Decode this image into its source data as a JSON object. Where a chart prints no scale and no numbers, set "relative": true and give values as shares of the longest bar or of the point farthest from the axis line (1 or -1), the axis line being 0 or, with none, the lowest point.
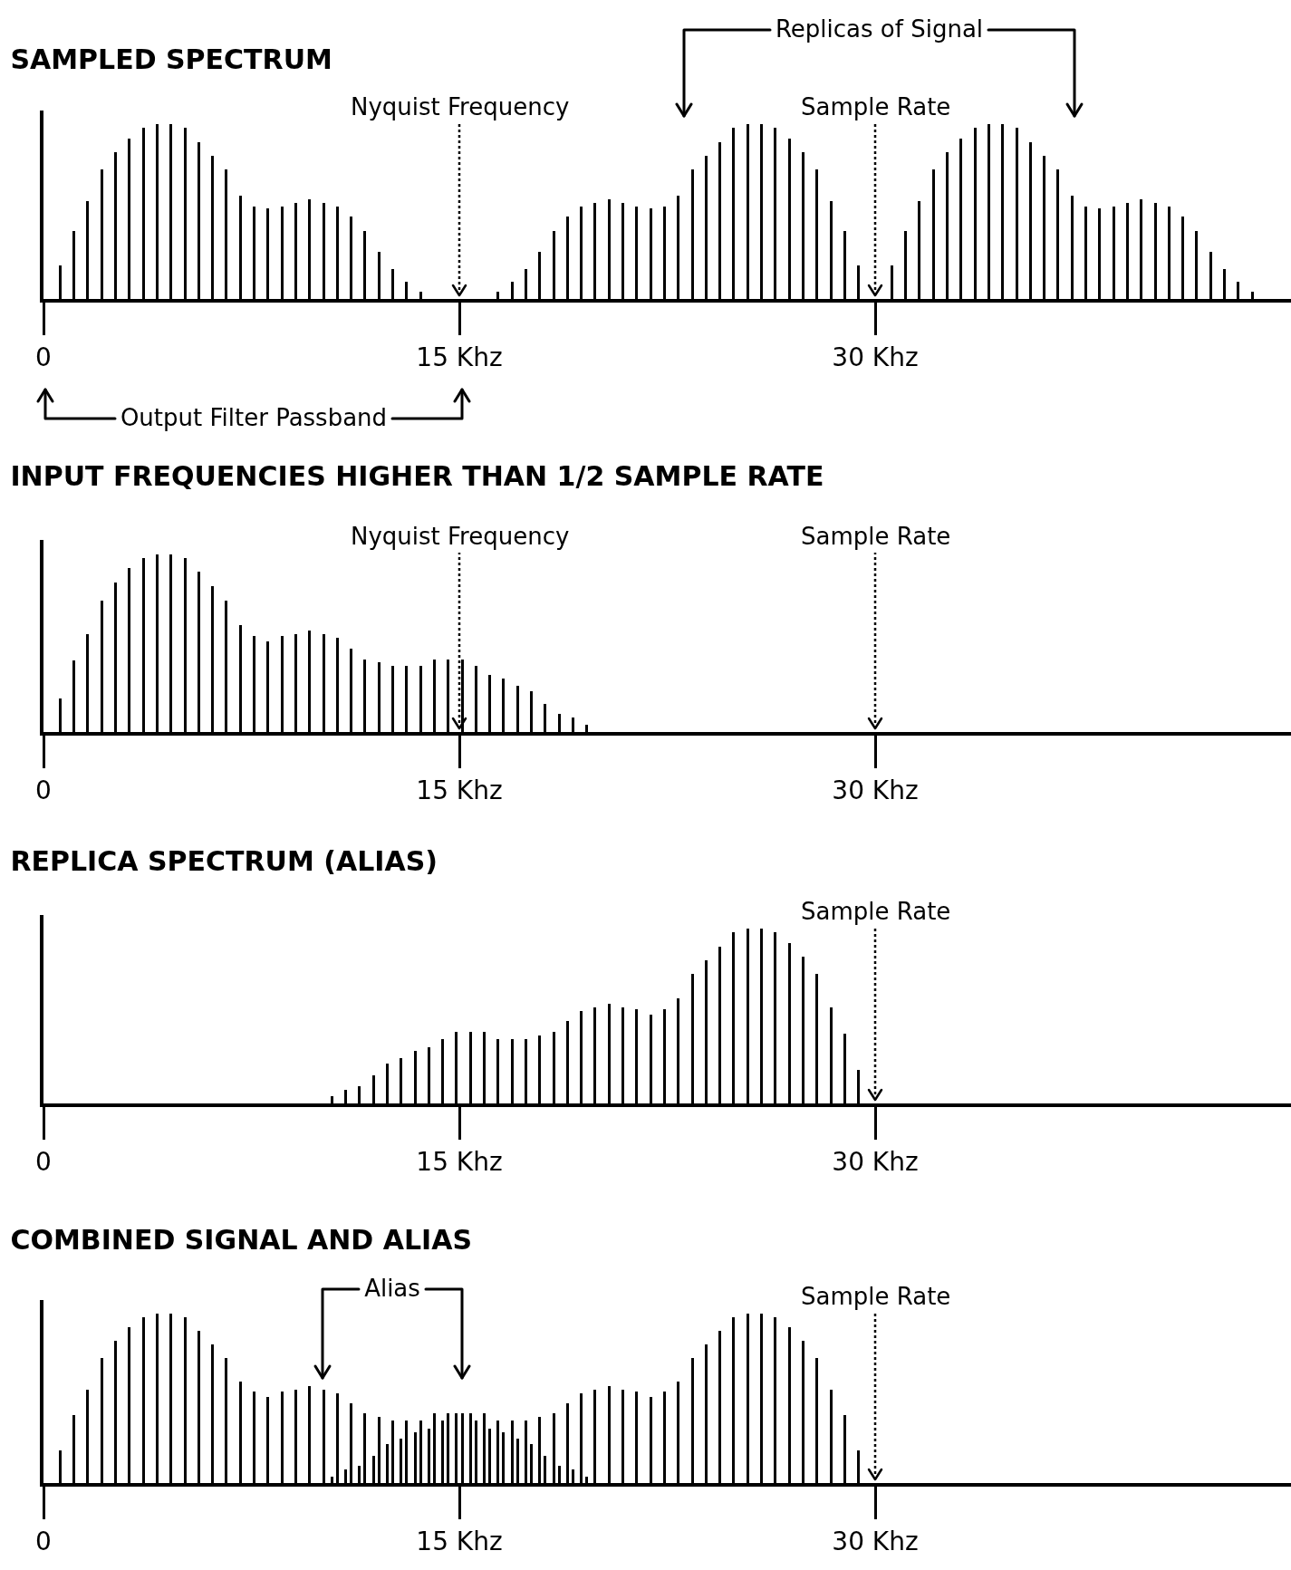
{
  "chart_data": [
    {
      "type": "bar",
      "title": "SAMPLED SPECTRUM",
      "relative": true,
      "xlim": [
        0,
        45
      ],
      "xticks": [
        {
          "value": 0,
          "label": "0"
        },
        {
          "value": 15,
          "label": "15 Khz"
        },
        {
          "value": 30,
          "label": "30 Khz"
        }
      ],
      "series": [
        {
          "color": "#000000",
          "x": [
            0.6,
            1.1,
            1.6,
            2.1,
            2.6,
            3.1,
            3.6,
            4.1,
            4.6,
            5.1,
            5.6,
            6.1,
            6.6,
            7.1,
            7.6,
            8.1,
            8.6,
            9.1,
            9.6,
            10.1,
            10.6,
            11.1,
            11.6,
            12.1,
            12.6,
            13.1,
            13.6,
            16.4,
            16.9,
            17.4,
            17.9,
            18.4,
            18.9,
            19.4,
            19.9,
            20.4,
            20.9,
            21.4,
            21.9,
            22.4,
            22.9,
            23.4,
            23.9,
            24.4,
            24.9,
            25.4,
            25.9,
            26.4,
            26.9,
            27.4,
            27.9,
            28.4,
            28.9,
            29.4,
            30.6,
            31.1,
            31.6,
            32.1,
            32.6,
            33.1,
            33.6,
            34.1,
            34.6,
            35.1,
            35.6,
            36.1,
            36.6,
            37.1,
            37.6,
            38.1,
            38.6,
            39.1,
            39.6,
            40.1,
            40.6,
            41.1,
            41.6,
            42.1,
            42.6,
            43.1,
            43.6
          ],
          "values": [
            0.19,
            0.39,
            0.56,
            0.74,
            0.84,
            0.92,
            0.98,
            1.0,
            1.0,
            0.98,
            0.9,
            0.82,
            0.74,
            0.59,
            0.53,
            0.52,
            0.53,
            0.55,
            0.57,
            0.55,
            0.53,
            0.47,
            0.39,
            0.27,
            0.17,
            0.1,
            0.04,
            0.04,
            0.1,
            0.17,
            0.27,
            0.39,
            0.47,
            0.53,
            0.55,
            0.57,
            0.55,
            0.53,
            0.52,
            0.53,
            0.59,
            0.74,
            0.82,
            0.9,
            0.98,
            1.0,
            1.0,
            0.98,
            0.92,
            0.84,
            0.74,
            0.56,
            0.39,
            0.19,
            0.19,
            0.39,
            0.56,
            0.74,
            0.84,
            0.92,
            0.98,
            1.0,
            1.0,
            0.98,
            0.9,
            0.82,
            0.74,
            0.59,
            0.53,
            0.52,
            0.53,
            0.55,
            0.57,
            0.55,
            0.53,
            0.47,
            0.39,
            0.27,
            0.17,
            0.1,
            0.04
          ]
        }
      ],
      "ref_lines": [
        {
          "axis": "x",
          "value": 15,
          "label": "Nyquist Frequency",
          "line_style": "dotted"
        },
        {
          "axis": "x",
          "value": 30,
          "label": "Sample Rate",
          "line_style": "dotted"
        }
      ],
      "annotations": [
        "Replicas of Signal",
        "Output Filter Passband"
      ]
    },
    {
      "type": "bar",
      "title": "INPUT FREQUENCIES HIGHER THAN 1/2 SAMPLE RATE",
      "relative": true,
      "xlim": [
        0,
        45
      ],
      "xticks": [
        {
          "value": 0,
          "label": "0"
        },
        {
          "value": 15,
          "label": "15 Khz"
        },
        {
          "value": 30,
          "label": "30 Khz"
        }
      ],
      "series": [
        {
          "color": "#000000",
          "x": [
            0.6,
            1.1,
            1.6,
            2.1,
            2.6,
            3.1,
            3.6,
            4.1,
            4.6,
            5.1,
            5.6,
            6.1,
            6.6,
            7.1,
            7.6,
            8.1,
            8.6,
            9.1,
            9.6,
            10.1,
            10.6,
            11.1,
            11.6,
            12.1,
            12.6,
            13.1,
            13.6,
            14.1,
            14.6,
            15.1,
            15.6,
            16.1,
            16.6,
            17.1,
            17.6,
            18.1,
            18.6,
            19.1,
            19.6
          ],
          "values": [
            0.19,
            0.4,
            0.55,
            0.74,
            0.84,
            0.92,
            0.98,
            1.0,
            1.0,
            0.98,
            0.9,
            0.82,
            0.74,
            0.6,
            0.54,
            0.51,
            0.54,
            0.55,
            0.57,
            0.55,
            0.53,
            0.47,
            0.41,
            0.39,
            0.37,
            0.37,
            0.37,
            0.41,
            0.41,
            0.41,
            0.37,
            0.32,
            0.3,
            0.26,
            0.23,
            0.16,
            0.1,
            0.08,
            0.04
          ]
        }
      ],
      "ref_lines": [
        {
          "axis": "x",
          "value": 15,
          "label": "Nyquist Frequency",
          "line_style": "dotted"
        },
        {
          "axis": "x",
          "value": 30,
          "label": "Sample Rate",
          "line_style": "dotted"
        }
      ]
    },
    {
      "type": "bar",
      "title": "REPLICA SPECTRUM (ALIAS)",
      "relative": true,
      "xlim": [
        0,
        45
      ],
      "xticks": [
        {
          "value": 0,
          "label": "0"
        },
        {
          "value": 15,
          "label": "15 Khz"
        },
        {
          "value": 30,
          "label": "30 Khz"
        }
      ],
      "series": [
        {
          "color": "#000000",
          "x": [
            10.4,
            10.9,
            11.4,
            11.9,
            12.4,
            12.9,
            13.4,
            13.9,
            14.4,
            14.9,
            15.4,
            15.9,
            16.4,
            16.9,
            17.4,
            17.9,
            18.4,
            18.9,
            19.4,
            19.9,
            20.4,
            20.9,
            21.4,
            21.9,
            22.4,
            22.9,
            23.4,
            23.9,
            24.4,
            24.9,
            25.4,
            25.9,
            26.4,
            26.9,
            27.4,
            27.9,
            28.4,
            28.9,
            29.4
          ],
          "values": [
            0.04,
            0.08,
            0.1,
            0.16,
            0.23,
            0.26,
            0.3,
            0.32,
            0.37,
            0.41,
            0.41,
            0.41,
            0.37,
            0.37,
            0.37,
            0.39,
            0.41,
            0.47,
            0.53,
            0.55,
            0.57,
            0.55,
            0.54,
            0.51,
            0.54,
            0.6,
            0.74,
            0.82,
            0.9,
            0.98,
            1.0,
            1.0,
            0.98,
            0.92,
            0.84,
            0.74,
            0.55,
            0.4,
            0.19
          ]
        }
      ],
      "ref_lines": [
        {
          "axis": "x",
          "value": 30,
          "label": "Sample Rate",
          "line_style": "dotted"
        }
      ]
    },
    {
      "type": "bar",
      "title": "COMBINED SIGNAL AND ALIAS",
      "relative": true,
      "xlim": [
        0,
        45
      ],
      "xticks": [
        {
          "value": 0,
          "label": "0"
        },
        {
          "value": 15,
          "label": "15 Khz"
        },
        {
          "value": 30,
          "label": "30 Khz"
        }
      ],
      "series": [
        {
          "color": "#000000",
          "x": [
            0.6,
            1.1,
            1.6,
            2.1,
            2.6,
            3.1,
            3.6,
            4.1,
            4.6,
            5.1,
            5.6,
            6.1,
            6.6,
            7.1,
            7.6,
            8.1,
            8.6,
            9.1,
            9.6,
            10.1,
            10.6,
            11.1,
            11.6,
            12.1,
            12.6,
            13.1,
            13.6,
            14.1,
            14.6,
            15.1,
            15.6,
            16.1,
            16.6,
            17.1,
            17.6,
            18.1,
            18.6,
            19.1,
            19.6
          ],
          "values": [
            0.19,
            0.4,
            0.55,
            0.74,
            0.84,
            0.92,
            0.98,
            1.0,
            1.0,
            0.98,
            0.9,
            0.82,
            0.74,
            0.6,
            0.54,
            0.51,
            0.54,
            0.55,
            0.57,
            0.55,
            0.53,
            0.47,
            0.41,
            0.39,
            0.37,
            0.37,
            0.37,
            0.41,
            0.41,
            0.41,
            0.37,
            0.32,
            0.3,
            0.26,
            0.23,
            0.16,
            0.1,
            0.08,
            0.04
          ]
        },
        {
          "color": "#000000",
          "x": [
            10.4,
            10.9,
            11.4,
            11.9,
            12.4,
            12.9,
            13.4,
            13.9,
            14.4,
            14.9,
            15.4,
            15.9,
            16.4,
            16.9,
            17.4,
            17.9,
            18.4,
            18.9,
            19.4,
            19.9,
            20.4,
            20.9,
            21.4,
            21.9,
            22.4,
            22.9,
            23.4,
            23.9,
            24.4,
            24.9,
            25.4,
            25.9,
            26.4,
            26.9,
            27.4,
            27.9,
            28.4,
            28.9,
            29.4
          ],
          "values": [
            0.04,
            0.08,
            0.1,
            0.16,
            0.23,
            0.26,
            0.3,
            0.32,
            0.37,
            0.41,
            0.41,
            0.41,
            0.37,
            0.37,
            0.37,
            0.39,
            0.41,
            0.47,
            0.53,
            0.55,
            0.57,
            0.55,
            0.54,
            0.51,
            0.54,
            0.6,
            0.74,
            0.82,
            0.9,
            0.98,
            1.0,
            1.0,
            0.98,
            0.92,
            0.84,
            0.74,
            0.55,
            0.4,
            0.19
          ]
        }
      ],
      "ref_lines": [
        {
          "axis": "x",
          "value": 30,
          "label": "Sample Rate",
          "line_style": "dotted"
        }
      ],
      "annotations": [
        "Alias"
      ]
    }
  ]
}
